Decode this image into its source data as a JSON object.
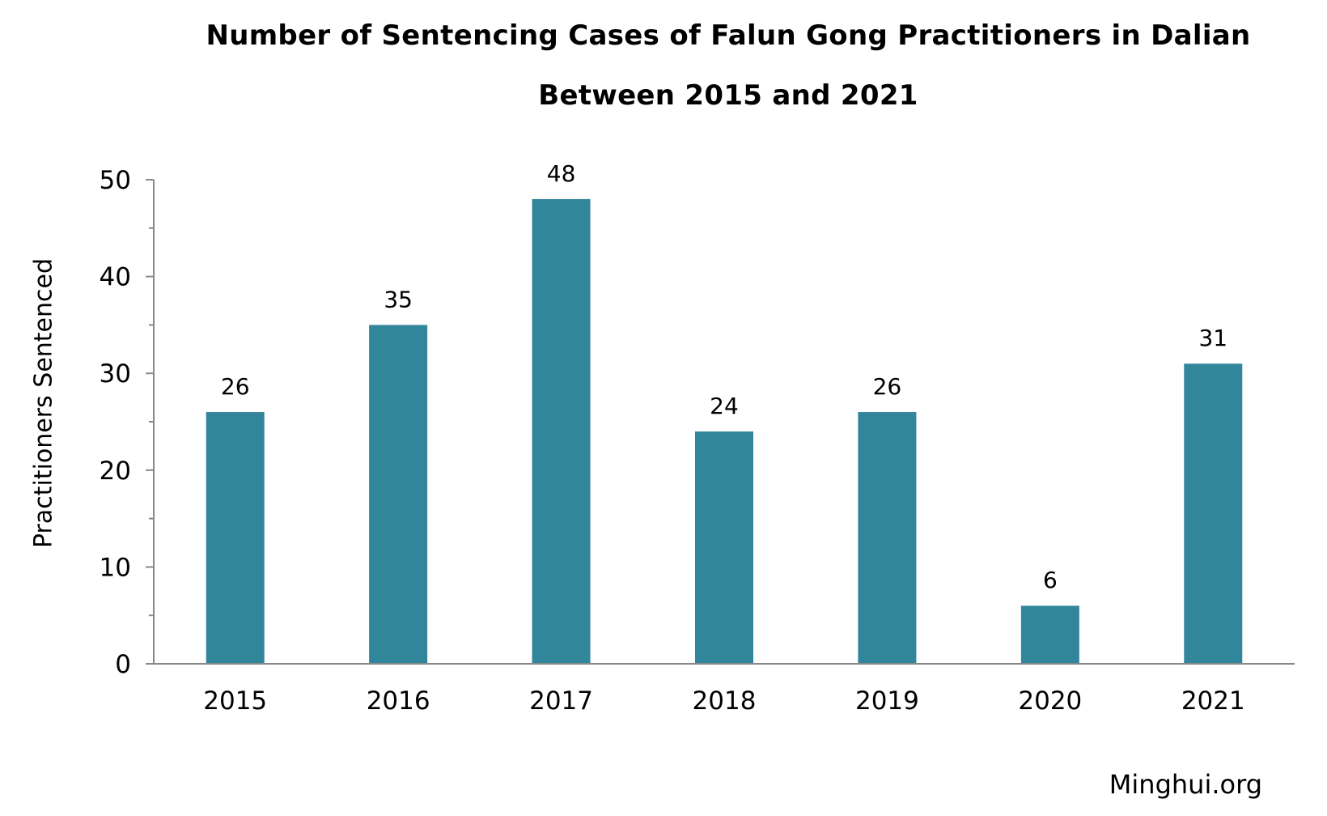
{
  "chart_data": {
    "type": "bar",
    "title_lines": [
      "Number of Sentencing Cases of Falun Gong Practitioners in Dalian",
      "Between 2015 and 2021"
    ],
    "categories": [
      "2015",
      "2016",
      "2017",
      "2018",
      "2019",
      "2020",
      "2021"
    ],
    "values": [
      26,
      35,
      48,
      24,
      26,
      6,
      31
    ],
    "data_labels": [
      "26",
      "35",
      "48",
      "24",
      "26",
      "6",
      "31"
    ],
    "xlabel": "",
    "ylabel": "Practitioners Sentenced",
    "ylim": [
      0,
      50
    ],
    "yticks": [
      0,
      10,
      20,
      30,
      40,
      50
    ],
    "ytick_labels": [
      "0",
      "10",
      "20",
      "30",
      "40",
      "50"
    ],
    "grid": false,
    "legend": "none",
    "bar_color": "#32869c",
    "axis_color": "#888888"
  },
  "source": "Minghui.org"
}
